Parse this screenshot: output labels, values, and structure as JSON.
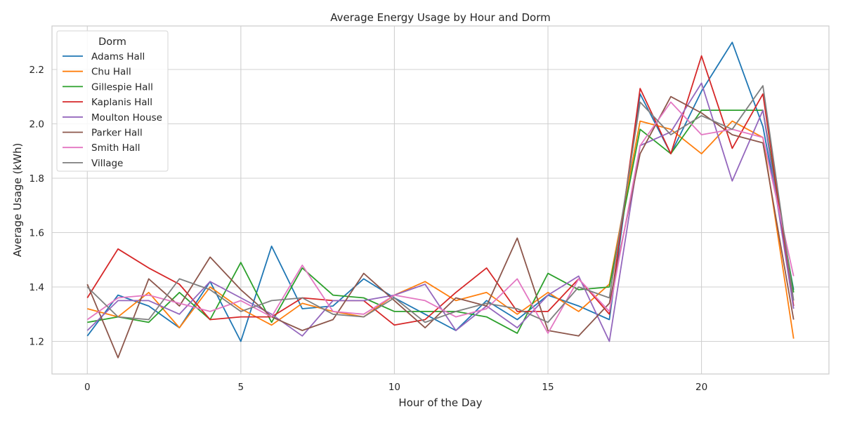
{
  "chart_data": {
    "type": "line",
    "title": "Average Energy Usage by Hour and Dorm",
    "xlabel": "Hour of the Day",
    "ylabel": "Average Usage (kWh)",
    "xlim": [
      -1.15,
      24.15
    ],
    "ylim": [
      1.08,
      2.36
    ],
    "xticks": [
      0,
      5,
      10,
      15,
      20
    ],
    "xtick_labels": [
      "0",
      "5",
      "10",
      "15",
      "20"
    ],
    "yticks": [
      1.2,
      1.4,
      1.6,
      1.8,
      2.0,
      2.2
    ],
    "ytick_labels": [
      "1.2",
      "1.4",
      "1.6",
      "1.8",
      "2.0",
      "2.2"
    ],
    "grid": true,
    "legend": {
      "title": "Dorm",
      "placement": "upper-left"
    },
    "x": [
      0,
      1,
      2,
      3,
      4,
      5,
      6,
      7,
      8,
      9,
      10,
      11,
      12,
      13,
      14,
      15,
      16,
      17,
      18,
      19,
      20,
      21,
      22,
      23
    ],
    "series": [
      {
        "name": "Adams Hall",
        "color": "#1f77b4",
        "values": [
          1.22,
          1.37,
          1.33,
          1.25,
          1.42,
          1.2,
          1.55,
          1.32,
          1.33,
          1.43,
          1.36,
          1.3,
          1.24,
          1.35,
          1.28,
          1.37,
          1.33,
          1.28,
          2.11,
          1.89,
          2.12,
          2.3,
          1.99,
          1.39
        ]
      },
      {
        "name": "Chu Hall",
        "color": "#ff7f0e",
        "values": [
          1.32,
          1.29,
          1.38,
          1.25,
          1.4,
          1.32,
          1.26,
          1.34,
          1.31,
          1.29,
          1.37,
          1.42,
          1.35,
          1.38,
          1.3,
          1.38,
          1.31,
          1.41,
          2.01,
          1.98,
          1.89,
          2.01,
          1.95,
          1.21
        ]
      },
      {
        "name": "Gillespie Hall",
        "color": "#2ca02c",
        "values": [
          1.27,
          1.29,
          1.27,
          1.38,
          1.28,
          1.49,
          1.27,
          1.47,
          1.37,
          1.36,
          1.31,
          1.31,
          1.31,
          1.29,
          1.23,
          1.45,
          1.39,
          1.4,
          1.98,
          1.89,
          2.05,
          2.05,
          2.05,
          1.38
        ]
      },
      {
        "name": "Kaplanis Hall",
        "color": "#d62728",
        "values": [
          1.36,
          1.54,
          1.47,
          1.41,
          1.28,
          1.29,
          1.29,
          1.36,
          1.35,
          1.35,
          1.26,
          1.28,
          1.38,
          1.47,
          1.31,
          1.31,
          1.43,
          1.3,
          2.13,
          1.89,
          2.25,
          1.91,
          2.11,
          1.33
        ]
      },
      {
        "name": "Moulton House",
        "color": "#9467bd",
        "values": [
          1.24,
          1.35,
          1.35,
          1.3,
          1.42,
          1.36,
          1.3,
          1.22,
          1.35,
          1.35,
          1.37,
          1.41,
          1.24,
          1.33,
          1.25,
          1.37,
          1.44,
          1.2,
          1.92,
          1.97,
          2.15,
          1.79,
          2.05,
          1.32
        ]
      },
      {
        "name": "Parker Hall",
        "color": "#8c564b",
        "values": [
          1.41,
          1.14,
          1.43,
          1.33,
          1.51,
          1.39,
          1.29,
          1.24,
          1.28,
          1.45,
          1.35,
          1.25,
          1.36,
          1.33,
          1.58,
          1.24,
          1.22,
          1.34,
          1.89,
          2.1,
          2.04,
          1.96,
          1.93,
          1.28
        ]
      },
      {
        "name": "Smith Hall",
        "color": "#e377c2",
        "values": [
          1.28,
          1.36,
          1.37,
          1.34,
          1.31,
          1.35,
          1.29,
          1.48,
          1.31,
          1.3,
          1.37,
          1.35,
          1.29,
          1.32,
          1.43,
          1.23,
          1.43,
          1.31,
          1.92,
          2.08,
          1.96,
          1.98,
          1.95,
          1.44
        ]
      },
      {
        "name": "Village",
        "color": "#7f7f7f",
        "values": [
          1.4,
          1.29,
          1.28,
          1.43,
          1.39,
          1.31,
          1.35,
          1.36,
          1.3,
          1.29,
          1.36,
          1.27,
          1.31,
          1.34,
          1.32,
          1.27,
          1.4,
          1.36,
          2.08,
          1.96,
          2.03,
          1.98,
          2.14,
          1.35
        ]
      }
    ]
  }
}
